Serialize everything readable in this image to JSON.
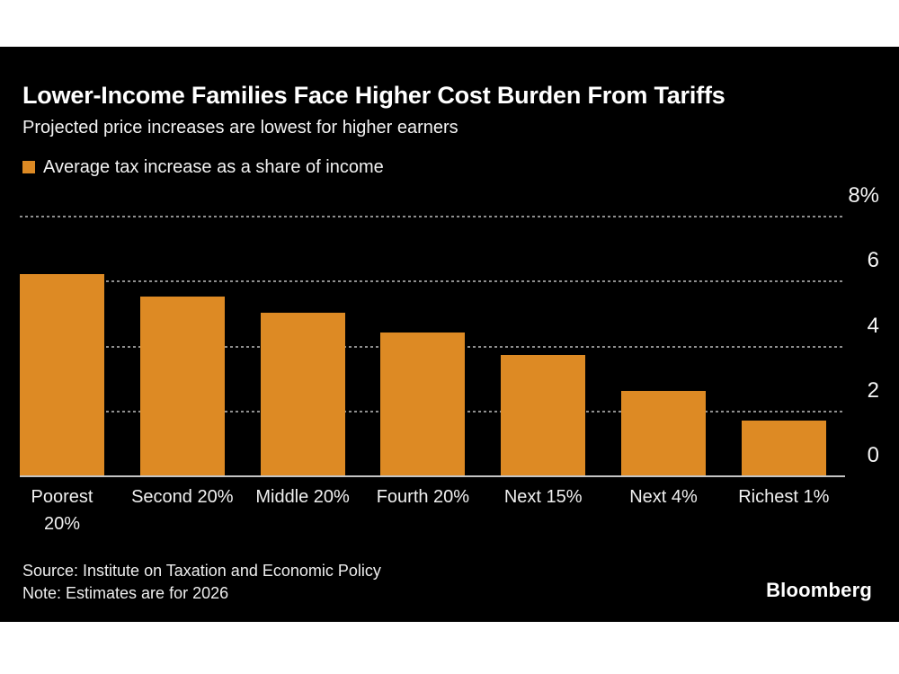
{
  "card": {
    "title": "Lower-Income Families Face Higher Cost Burden From Tariffs",
    "subtitle": "Projected price increases are lowest for higher earners",
    "legend": {
      "label": "Average tax increase as a share of income",
      "swatch_color": "#DD8A24"
    },
    "source": "Source: Institute on Taxation and Economic Policy",
    "note": "Note: Estimates are for 2026",
    "logo": "Bloomberg"
  },
  "chart_data": {
    "type": "bar",
    "title": "Lower-Income Families Face Higher Cost Burden From Tariffs",
    "subtitle": "Projected price increases are lowest for higher earners",
    "legend_entries": [
      "Average tax increase as a share of income"
    ],
    "categories": [
      "Poorest 20%",
      "Second 20%",
      "Middle 20%",
      "Fourth 20%",
      "Next 15%",
      "Next 4%",
      "Richest 1%"
    ],
    "category_lines": [
      [
        "Poorest",
        "20%"
      ],
      [
        "Second 20%"
      ],
      [
        "Middle 20%"
      ],
      [
        "Fourth 20%"
      ],
      [
        "Next 15%"
      ],
      [
        "Next 4%"
      ],
      [
        "Richest 1%"
      ]
    ],
    "values": [
      6.2,
      5.5,
      5.0,
      4.4,
      3.7,
      2.6,
      1.7
    ],
    "unit": "%",
    "xlabel": "",
    "ylabel": "",
    "ylim": [
      0,
      8
    ],
    "yticks": [
      {
        "value": 0,
        "label": "0"
      },
      {
        "value": 2,
        "label": "2"
      },
      {
        "value": 4,
        "label": "4"
      },
      {
        "value": 6,
        "label": "6"
      },
      {
        "value": 8,
        "label": "8%"
      }
    ],
    "grid": "dotted horizontal, labels right",
    "legend_position": "top-left",
    "bar_color": "#DD8A24",
    "background_color": "#000000",
    "gridline_color": "#8f8f8f",
    "baseline_color": "#c4c4c4"
  }
}
